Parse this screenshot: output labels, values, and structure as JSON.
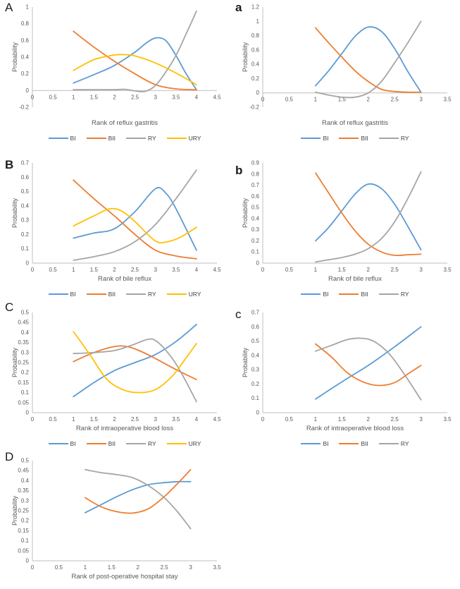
{
  "figure": {
    "background": "#ffffff"
  },
  "palette": {
    "BI": "#5B9BD5",
    "BII": "#ED7D31",
    "RY": "#A5A5A5",
    "URY": "#FFC000",
    "axis_line": "#BFBFBF",
    "tick_text": "#595959",
    "label_text": "#404040"
  },
  "chart_data": [
    {
      "panel": "A",
      "type": "line",
      "xlabel": "Rank of reflux gastritis",
      "ylabel": "Probability",
      "xlim": [
        0,
        4.5
      ],
      "xtick_step": 0.5,
      "ylim": [
        -0.2,
        1
      ],
      "ytick_step": 0.2,
      "grid": false,
      "legend_position": "bottom",
      "legend": [
        "BI",
        "BII",
        "RY",
        "URY"
      ],
      "series": [
        {
          "name": "BI",
          "color": "#5B9BD5",
          "x": [
            1,
            1.5,
            2,
            2.5,
            2.75,
            3,
            3.25,
            3.5,
            3.75,
            4
          ],
          "y": [
            0.09,
            0.19,
            0.3,
            0.46,
            0.56,
            0.63,
            0.6,
            0.42,
            0.2,
            0.01
          ]
        },
        {
          "name": "BII",
          "color": "#ED7D31",
          "x": [
            1,
            1.5,
            2,
            2.5,
            3,
            3.5,
            4
          ],
          "y": [
            0.71,
            0.52,
            0.35,
            0.2,
            0.07,
            0.02,
            0.01
          ]
        },
        {
          "name": "RY",
          "color": "#A5A5A5",
          "x": [
            1,
            1.5,
            2,
            2.25,
            2.5,
            2.75,
            3,
            3.25,
            3.5,
            3.75,
            4
          ],
          "y": [
            0.01,
            0.01,
            0.01,
            0.015,
            -0.005,
            -0.01,
            0.06,
            0.22,
            0.42,
            0.68,
            0.95
          ]
        },
        {
          "name": "URY",
          "color": "#FFC000",
          "x": [
            1,
            1.5,
            2,
            2.25,
            2.5,
            3,
            3.5,
            4
          ],
          "y": [
            0.24,
            0.37,
            0.425,
            0.43,
            0.415,
            0.33,
            0.21,
            0.07
          ]
        }
      ]
    },
    {
      "panel": "a",
      "type": "line",
      "xlabel": "Rank of reflux gastritis",
      "ylabel": "Probability",
      "xlim": [
        0,
        3.5
      ],
      "xtick_step": 0.5,
      "ylim": [
        -0.2,
        1.2
      ],
      "ytick_step": 0.2,
      "grid": false,
      "legend_position": "bottom",
      "legend": [
        "BI",
        "BII",
        "RY"
      ],
      "series": [
        {
          "name": "BI",
          "color": "#5B9BD5",
          "x": [
            1,
            1.25,
            1.5,
            1.75,
            2,
            2.25,
            2.5,
            2.75,
            3
          ],
          "y": [
            0.1,
            0.31,
            0.55,
            0.79,
            0.92,
            0.86,
            0.62,
            0.3,
            0.01
          ]
        },
        {
          "name": "BII",
          "color": "#ED7D31",
          "x": [
            1,
            1.25,
            1.5,
            1.75,
            2,
            2.25,
            2.5,
            2.75,
            3
          ],
          "y": [
            0.91,
            0.7,
            0.5,
            0.31,
            0.16,
            0.05,
            0.02,
            0.01,
            0.01
          ]
        },
        {
          "name": "RY",
          "color": "#A5A5A5",
          "x": [
            1,
            1.25,
            1.5,
            1.75,
            2,
            2.25,
            2.5,
            2.75,
            3
          ],
          "y": [
            0.01,
            -0.03,
            -0.06,
            -0.06,
            0.0,
            0.16,
            0.42,
            0.7,
            1.0
          ]
        }
      ]
    },
    {
      "panel": "B",
      "type": "line",
      "xlabel": "Rank of bile reflux",
      "ylabel": "Probability",
      "xlim": [
        0,
        4.5
      ],
      "xtick_step": 0.5,
      "ylim": [
        0,
        0.7
      ],
      "ytick_step": 0.1,
      "grid": false,
      "legend_position": "bottom",
      "legend": [
        "BI",
        "BII",
        "RY",
        "URY"
      ],
      "series": [
        {
          "name": "BI",
          "color": "#5B9BD5",
          "x": [
            1,
            1.5,
            2,
            2.5,
            3,
            3.25,
            3.5,
            4
          ],
          "y": [
            0.175,
            0.21,
            0.24,
            0.36,
            0.52,
            0.49,
            0.38,
            0.09
          ]
        },
        {
          "name": "BII",
          "color": "#ED7D31",
          "x": [
            1,
            1.5,
            2,
            2.5,
            3,
            3.5,
            4
          ],
          "y": [
            0.58,
            0.45,
            0.33,
            0.2,
            0.09,
            0.05,
            0.03
          ]
        },
        {
          "name": "RY",
          "color": "#A5A5A5",
          "x": [
            1,
            1.5,
            2,
            2.5,
            3,
            3.5,
            4
          ],
          "y": [
            0.02,
            0.045,
            0.08,
            0.15,
            0.27,
            0.45,
            0.65
          ]
        },
        {
          "name": "URY",
          "color": "#FFC000",
          "x": [
            1,
            1.5,
            1.9,
            2.2,
            2.5,
            3,
            3.3,
            3.6,
            4
          ],
          "y": [
            0.26,
            0.33,
            0.38,
            0.36,
            0.29,
            0.155,
            0.15,
            0.18,
            0.25
          ]
        }
      ]
    },
    {
      "panel": "b",
      "type": "line",
      "xlabel": "Rank of bile reflux",
      "ylabel": "Probability",
      "xlim": [
        0,
        3.5
      ],
      "xtick_step": 0.5,
      "ylim": [
        0,
        0.9
      ],
      "ytick_step": 0.1,
      "grid": false,
      "legend_position": "bottom",
      "legend": [
        "BI",
        "BII",
        "RY"
      ],
      "series": [
        {
          "name": "BI",
          "color": "#5B9BD5",
          "x": [
            1,
            1.25,
            1.5,
            1.75,
            2,
            2.25,
            2.5,
            2.75,
            3
          ],
          "y": [
            0.2,
            0.32,
            0.47,
            0.62,
            0.71,
            0.67,
            0.53,
            0.33,
            0.12
          ]
        },
        {
          "name": "BII",
          "color": "#ED7D31",
          "x": [
            1,
            1.25,
            1.5,
            1.75,
            2,
            2.25,
            2.5,
            2.75,
            3
          ],
          "y": [
            0.81,
            0.63,
            0.45,
            0.29,
            0.17,
            0.1,
            0.07,
            0.075,
            0.08
          ]
        },
        {
          "name": "RY",
          "color": "#A5A5A5",
          "x": [
            1,
            1.25,
            1.5,
            1.75,
            2,
            2.25,
            2.5,
            2.75,
            3
          ],
          "y": [
            0.01,
            0.03,
            0.05,
            0.08,
            0.13,
            0.22,
            0.37,
            0.58,
            0.82
          ]
        }
      ]
    },
    {
      "panel": "C",
      "type": "line",
      "xlabel": "Rank of intraoperative blood loss",
      "ylabel": "Probability",
      "xlim": [
        0,
        4.5
      ],
      "xtick_step": 0.5,
      "ylim": [
        0,
        0.5
      ],
      "ytick_step": 0.05,
      "grid": false,
      "legend_position": "bottom",
      "legend": [
        "BI",
        "BII",
        "RY",
        "URY"
      ],
      "series": [
        {
          "name": "BI",
          "color": "#5B9BD5",
          "x": [
            1,
            1.5,
            2,
            2.5,
            3,
            3.5,
            4
          ],
          "y": [
            0.08,
            0.15,
            0.21,
            0.25,
            0.29,
            0.355,
            0.44
          ]
        },
        {
          "name": "BII",
          "color": "#ED7D31",
          "x": [
            1,
            1.5,
            2,
            2.3,
            2.6,
            3,
            3.5,
            4
          ],
          "y": [
            0.255,
            0.3,
            0.33,
            0.33,
            0.31,
            0.27,
            0.215,
            0.165
          ]
        },
        {
          "name": "RY",
          "color": "#A5A5A5",
          "x": [
            1,
            1.5,
            2,
            2.4,
            2.8,
            3,
            3.3,
            3.6,
            4
          ],
          "y": [
            0.295,
            0.3,
            0.31,
            0.335,
            0.365,
            0.36,
            0.3,
            0.21,
            0.055
          ]
        },
        {
          "name": "URY",
          "color": "#FFC000",
          "x": [
            1,
            1.4,
            1.8,
            2.2,
            2.6,
            3,
            3.4,
            3.7,
            4
          ],
          "y": [
            0.405,
            0.29,
            0.17,
            0.115,
            0.1,
            0.115,
            0.18,
            0.26,
            0.345
          ]
        }
      ]
    },
    {
      "panel": "c",
      "type": "line",
      "xlabel": "Rank of intraoperative blood loss",
      "ylabel": "Probability",
      "xlim": [
        0,
        3.5
      ],
      "xtick_step": 0.5,
      "ylim": [
        0,
        0.7
      ],
      "ytick_step": 0.1,
      "grid": false,
      "legend_position": "bottom",
      "legend": [
        "BI",
        "BII",
        "RY"
      ],
      "series": [
        {
          "name": "BI",
          "color": "#5B9BD5",
          "x": [
            1,
            1.5,
            2,
            2.5,
            3
          ],
          "y": [
            0.095,
            0.215,
            0.33,
            0.46,
            0.6
          ]
        },
        {
          "name": "BII",
          "color": "#ED7D31",
          "x": [
            1,
            1.3,
            1.6,
            1.9,
            2.2,
            2.5,
            2.75,
            3
          ],
          "y": [
            0.48,
            0.39,
            0.28,
            0.215,
            0.19,
            0.21,
            0.27,
            0.33
          ]
        },
        {
          "name": "RY",
          "color": "#A5A5A5",
          "x": [
            1,
            1.3,
            1.6,
            1.85,
            2.1,
            2.4,
            2.7,
            3
          ],
          "y": [
            0.43,
            0.47,
            0.51,
            0.52,
            0.5,
            0.41,
            0.26,
            0.09
          ]
        }
      ]
    },
    {
      "panel": "D",
      "type": "line",
      "xlabel": "Rank of post-operative hospital stay",
      "ylabel": "Probability",
      "xlim": [
        0,
        3.5
      ],
      "xtick_step": 0.5,
      "ylim": [
        0,
        0.5
      ],
      "ytick_step": 0.05,
      "grid": false,
      "legend_position": "bottom",
      "legend": [
        "BI",
        "BII",
        "RY"
      ],
      "series": [
        {
          "name": "BI",
          "color": "#5B9BD5",
          "x": [
            1,
            1.3,
            1.6,
            1.9,
            2.2,
            2.5,
            2.75,
            3
          ],
          "y": [
            0.24,
            0.28,
            0.32,
            0.355,
            0.38,
            0.39,
            0.395,
            0.395
          ]
        },
        {
          "name": "BII",
          "color": "#ED7D31",
          "x": [
            1,
            1.3,
            1.6,
            1.9,
            2.2,
            2.5,
            2.75,
            3
          ],
          "y": [
            0.315,
            0.27,
            0.245,
            0.238,
            0.26,
            0.32,
            0.385,
            0.455
          ]
        },
        {
          "name": "RY",
          "color": "#A5A5A5",
          "x": [
            1,
            1.3,
            1.6,
            1.9,
            2.2,
            2.5,
            2.75,
            3
          ],
          "y": [
            0.455,
            0.44,
            0.43,
            0.415,
            0.375,
            0.315,
            0.245,
            0.16
          ]
        }
      ]
    }
  ]
}
